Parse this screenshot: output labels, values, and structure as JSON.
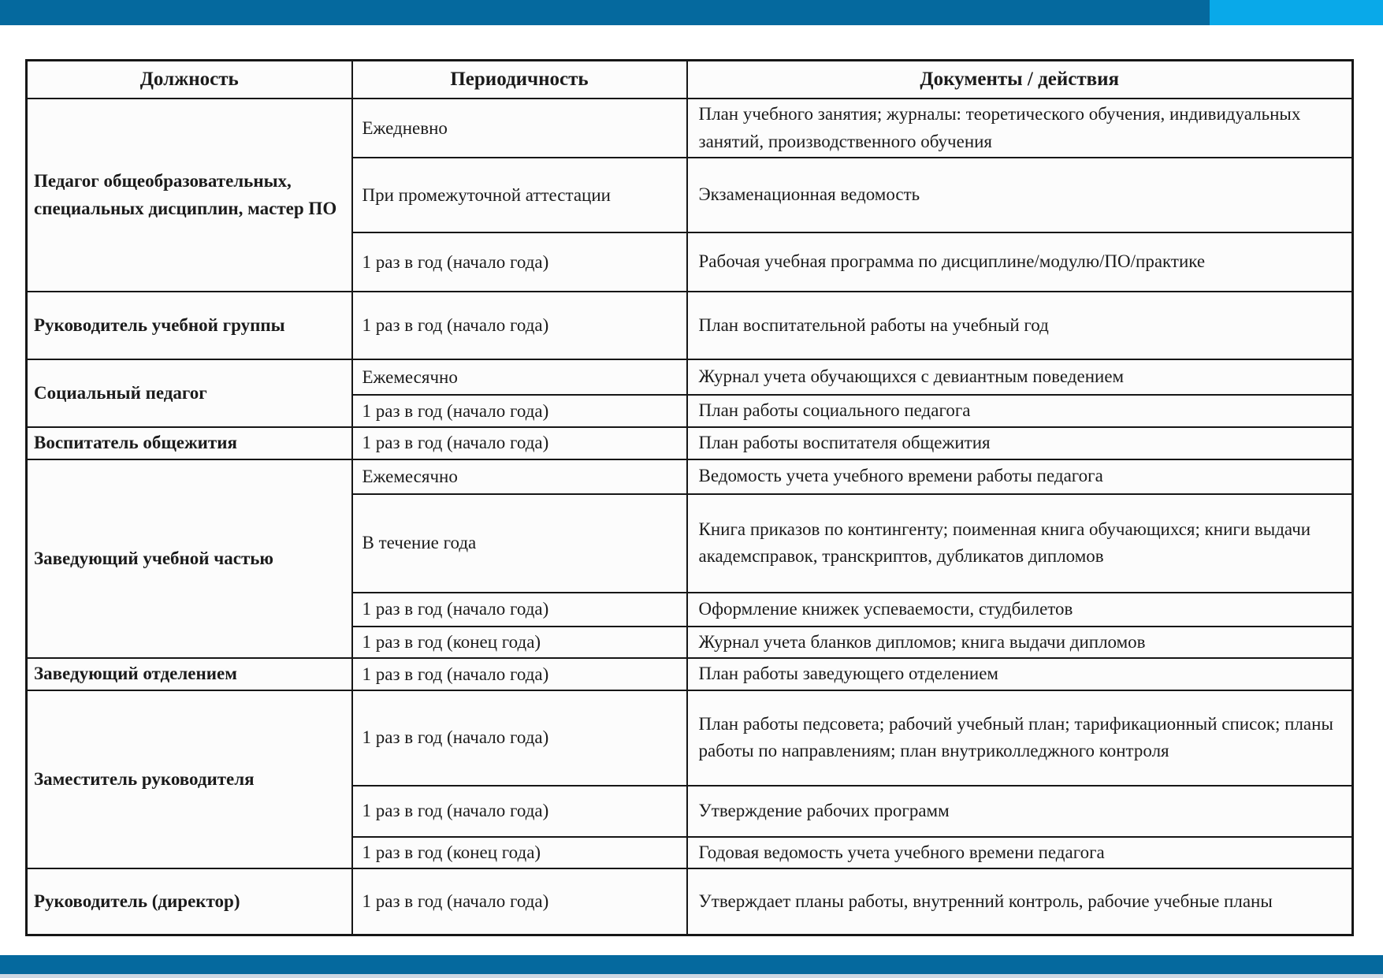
{
  "page": {
    "top_bar": {
      "dark_color": "#05699e",
      "light_color": "#09a9e9"
    },
    "bottom_bar": {
      "color": "#05699e",
      "strip_color": "#ccd8e4"
    }
  },
  "table": {
    "headers": [
      "Должность",
      "Периодичность",
      "Документы / действия"
    ],
    "groups": [
      {
        "position": "Педагог общеобразовательных, специальных дисциплин, мастер ПО",
        "entries": [
          {
            "period": "Ежедневно",
            "docs": "План учебного занятия; журналы: теоретического обучения, индивидуальных занятий, производственного обучения"
          },
          {
            "period": "При промежуточной аттестации",
            "docs": "Экзаменационная ведомость"
          },
          {
            "period": "1 раз в год (начало года)",
            "docs": "Рабочая учебная программа по дисциплине/модулю/ПО/практике"
          }
        ]
      },
      {
        "position": "Руководитель учебной группы",
        "entries": [
          {
            "period": "1 раз в год (начало года)",
            "docs": "План воспитательной работы на учебный год"
          }
        ]
      },
      {
        "position": "Социальный педагог",
        "entries": [
          {
            "period": "Ежемесячно",
            "docs": "Журнал учета обучающихся с девиантным поведением"
          },
          {
            "period": "1 раз в год (начало года)",
            "docs": "План работы социального педагога"
          }
        ]
      },
      {
        "position": "Воспитатель общежития",
        "entries": [
          {
            "period": "1 раз в год (начало года)",
            "docs": "План работы воспитателя общежития"
          }
        ]
      },
      {
        "position": "Заведующий учебной частью",
        "entries": [
          {
            "period": "Ежемесячно",
            "docs": "Ведомость учета учебного времени работы педагога"
          },
          {
            "period": "В течение года",
            "docs": "Книга приказов по контингенту; поименная книга обучающихся; книги выдачи академсправок, транскриптов, дубликатов дипломов"
          },
          {
            "period": "1 раз в год (начало года)",
            "docs": "Оформление книжек успеваемости, студбилетов"
          },
          {
            "period": "1 раз в год (конец года)",
            "docs": "Журнал учета бланков дипломов; книга выдачи дипломов"
          }
        ]
      },
      {
        "position": "Заведующий отделением",
        "entries": [
          {
            "period": "1 раз в год (начало года)",
            "docs": "План работы заведующего отделением"
          }
        ]
      },
      {
        "position": "Заместитель руководителя",
        "entries": [
          {
            "period": "1 раз в год (начало года)",
            "docs": "План работы педсовета; рабочий учебный план; тарификационный список; планы работы по направлениям; план внутриколледжного контроля"
          },
          {
            "period": "1 раз в год (начало года)",
            "docs": "Утверждение рабочих программ"
          },
          {
            "period": "1 раз в год (конец года)",
            "docs": "Годовая ведомость учета учебного времени педагога"
          }
        ]
      },
      {
        "position": "Руководитель (директор)",
        "entries": [
          {
            "period": "1 раз в год (начало года)",
            "docs": "Утверждает планы работы, внутренний контроль, рабочие учебные планы"
          }
        ]
      }
    ]
  }
}
